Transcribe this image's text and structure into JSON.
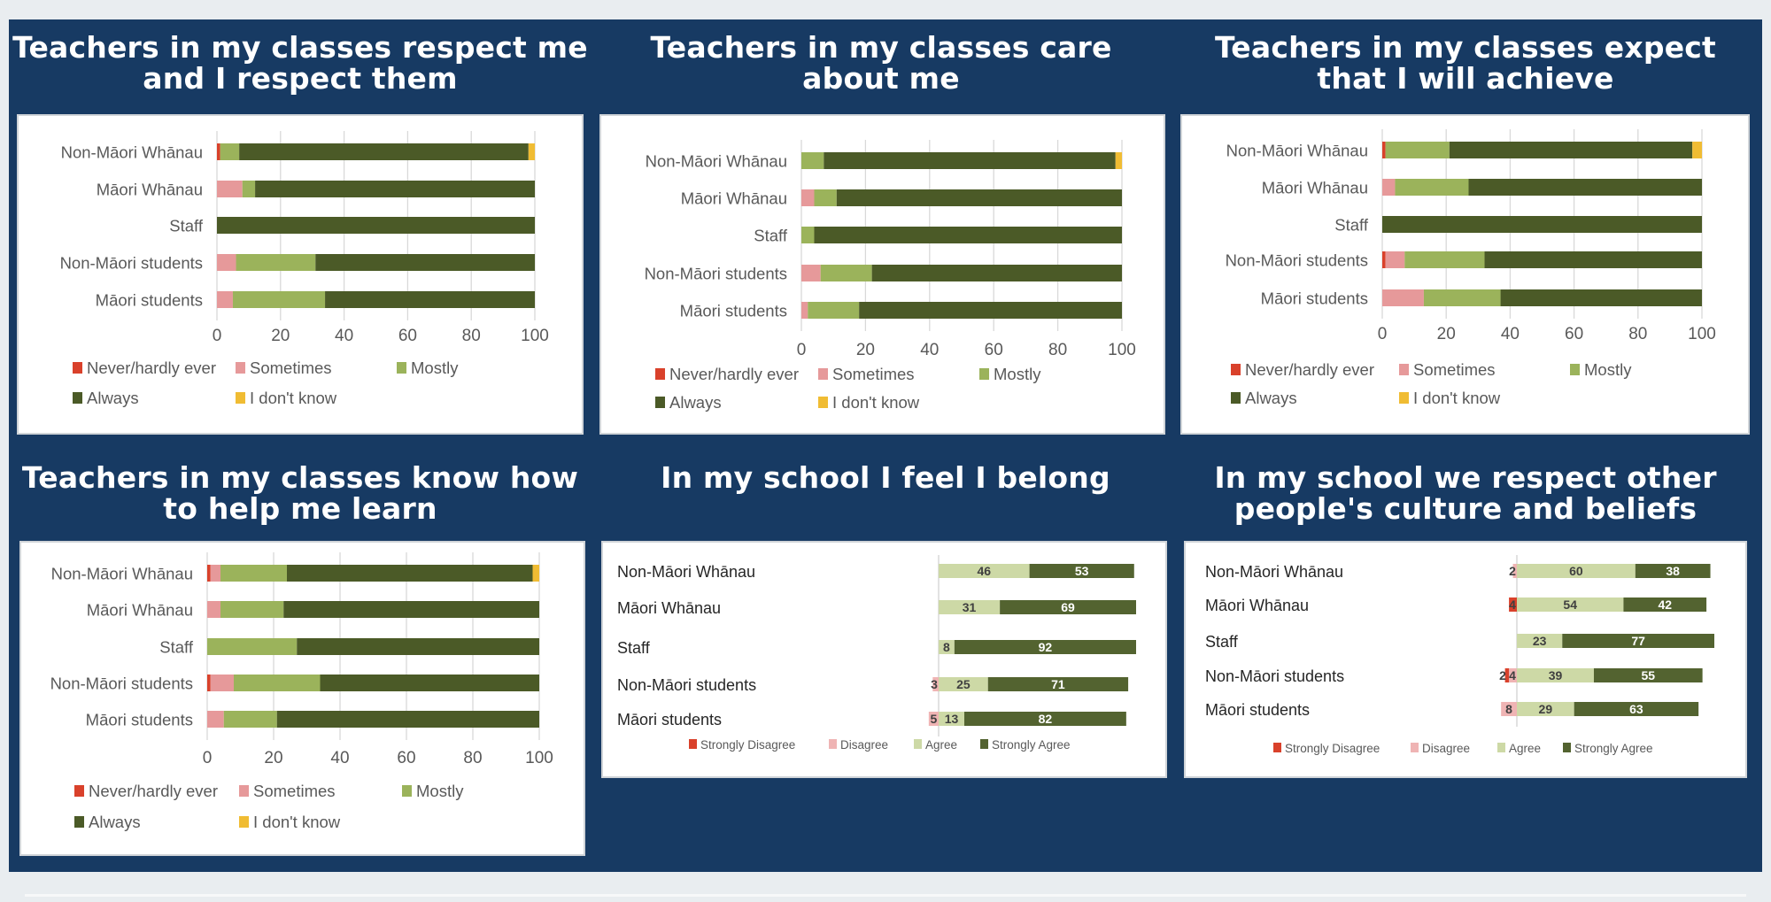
{
  "colors": {
    "background": "#e9edf0",
    "panel": "#173a63",
    "never": "#d9412b",
    "sometimes": "#e6999a",
    "mostly": "#9bb35b",
    "always": "#4b5a27",
    "dont_know": "#f0bc33",
    "strongly_disagree": "#d9412b",
    "disagree": "#efb4b4",
    "agree": "#cdd9a6",
    "strongly_agree": "#536330"
  },
  "chart_data": [
    {
      "type": "bar",
      "orientation": "horizontal-stacked",
      "title": "Teachers in my classes respect me and I respect them",
      "categories": [
        "Non-Māori Whānau",
        "Māori Whānau",
        "Staff",
        "Non-Māori students",
        "Māori students"
      ],
      "xlim": [
        0,
        100
      ],
      "xticks": [
        "0",
        "20",
        "40",
        "60",
        "80",
        "100"
      ],
      "grid": true,
      "legend": "bottom",
      "series": [
        {
          "name": "Never/hardly ever",
          "color": "#d9412b",
          "values": [
            1,
            0,
            0,
            0,
            0
          ]
        },
        {
          "name": "Sometimes",
          "color": "#e6999a",
          "values": [
            0,
            8,
            0,
            6,
            5
          ]
        },
        {
          "name": "Mostly",
          "color": "#9bb35b",
          "values": [
            6,
            4,
            0,
            25,
            29
          ]
        },
        {
          "name": "Always",
          "color": "#4b5a27",
          "values": [
            91,
            88,
            100,
            69,
            66
          ]
        },
        {
          "name": "I don't know",
          "color": "#f0bc33",
          "values": [
            2,
            0,
            0,
            0,
            0
          ]
        }
      ]
    },
    {
      "type": "bar",
      "orientation": "horizontal-stacked",
      "title": "Teachers in my classes care about me",
      "categories": [
        "Non-Māori Whānau",
        "Māori Whānau",
        "Staff",
        "Non-Māori students",
        "Māori students"
      ],
      "xlim": [
        0,
        100
      ],
      "xticks": [
        "0",
        "20",
        "40",
        "60",
        "80",
        "100"
      ],
      "grid": true,
      "legend": "bottom",
      "series": [
        {
          "name": "Never/hardly ever",
          "color": "#d9412b",
          "values": [
            0,
            0,
            0,
            0,
            0
          ]
        },
        {
          "name": "Sometimes",
          "color": "#e6999a",
          "values": [
            0,
            4,
            0,
            6,
            2
          ]
        },
        {
          "name": "Mostly",
          "color": "#9bb35b",
          "values": [
            7,
            7,
            4,
            16,
            16
          ]
        },
        {
          "name": "Always",
          "color": "#4b5a27",
          "values": [
            91,
            89,
            96,
            78,
            82
          ]
        },
        {
          "name": "I don't know",
          "color": "#f0bc33",
          "values": [
            2,
            0,
            0,
            0,
            0
          ]
        }
      ]
    },
    {
      "type": "bar",
      "orientation": "horizontal-stacked",
      "title": "Teachers in my classes expect that I will achieve",
      "categories": [
        "Non-Māori Whānau",
        "Māori Whānau",
        "Staff",
        "Non-Māori students",
        "Māori students"
      ],
      "xlim": [
        0,
        100
      ],
      "xticks": [
        "0",
        "20",
        "40",
        "60",
        "80",
        "100"
      ],
      "grid": true,
      "legend": "bottom",
      "series": [
        {
          "name": "Never/hardly ever",
          "color": "#d9412b",
          "values": [
            1,
            0,
            0,
            1,
            0
          ]
        },
        {
          "name": "Sometimes",
          "color": "#e6999a",
          "values": [
            0,
            4,
            0,
            6,
            13
          ]
        },
        {
          "name": "Mostly",
          "color": "#9bb35b",
          "values": [
            20,
            23,
            0,
            25,
            24
          ]
        },
        {
          "name": "Always",
          "color": "#4b5a27",
          "values": [
            76,
            73,
            100,
            68,
            63
          ]
        },
        {
          "name": "I don't know",
          "color": "#f0bc33",
          "values": [
            3,
            0,
            0,
            0,
            0
          ]
        }
      ]
    },
    {
      "type": "bar",
      "orientation": "horizontal-stacked",
      "title": "Teachers in my classes know how to help me learn",
      "categories": [
        "Non-Māori Whānau",
        "Māori Whānau",
        "Staff",
        "Non-Māori students",
        "Māori students"
      ],
      "xlim": [
        0,
        100
      ],
      "xticks": [
        "0",
        "20",
        "40",
        "60",
        "80",
        "100"
      ],
      "grid": true,
      "legend": "bottom",
      "series": [
        {
          "name": "Never/hardly ever",
          "color": "#d9412b",
          "values": [
            1,
            0,
            0,
            1,
            0
          ]
        },
        {
          "name": "Sometimes",
          "color": "#e6999a",
          "values": [
            3,
            4,
            0,
            7,
            5
          ]
        },
        {
          "name": "Mostly",
          "color": "#9bb35b",
          "values": [
            20,
            19,
            27,
            26,
            16
          ]
        },
        {
          "name": "Always",
          "color": "#4b5a27",
          "values": [
            74,
            77,
            73,
            66,
            79
          ]
        },
        {
          "name": "I don't know",
          "color": "#f0bc33",
          "values": [
            2,
            0,
            0,
            0,
            0
          ]
        }
      ]
    },
    {
      "type": "bar",
      "orientation": "horizontal-diverging",
      "title": "In my school I feel I belong",
      "categories": [
        "Non-Māori Whānau",
        "Māori Whānau",
        "Staff",
        "Non-Māori students",
        "Māori students"
      ],
      "grid": false,
      "legend": "bottom",
      "data_labels": true,
      "series": [
        {
          "name": "Strongly Disagree",
          "color": "#d9412b",
          "values": [
            0,
            0,
            0,
            0,
            0
          ]
        },
        {
          "name": "Disagree",
          "color": "#efb4b4",
          "values": [
            0,
            0,
            0,
            3,
            5
          ]
        },
        {
          "name": "Agree",
          "color": "#cdd9a6",
          "values": [
            46,
            31,
            8,
            25,
            13
          ]
        },
        {
          "name": "Strongly Agree",
          "color": "#536330",
          "values": [
            53,
            69,
            92,
            71,
            82
          ]
        }
      ]
    },
    {
      "type": "bar",
      "orientation": "horizontal-diverging",
      "title": "In my school we respect other people's culture and beliefs",
      "categories": [
        "Non-Māori Whānau",
        "Māori Whānau",
        "Staff",
        "Non-Māori students",
        "Māori students"
      ],
      "grid": false,
      "legend": "bottom",
      "data_labels": true,
      "series": [
        {
          "name": "Strongly Disagree",
          "color": "#d9412b",
          "values": [
            0,
            4,
            0,
            2,
            0
          ]
        },
        {
          "name": "Disagree",
          "color": "#efb4b4",
          "values": [
            2,
            0,
            0,
            4,
            8
          ]
        },
        {
          "name": "Agree",
          "color": "#cdd9a6",
          "values": [
            60,
            54,
            23,
            39,
            29
          ]
        },
        {
          "name": "Strongly Agree",
          "color": "#536330",
          "values": [
            38,
            42,
            77,
            55,
            63
          ]
        }
      ]
    }
  ]
}
